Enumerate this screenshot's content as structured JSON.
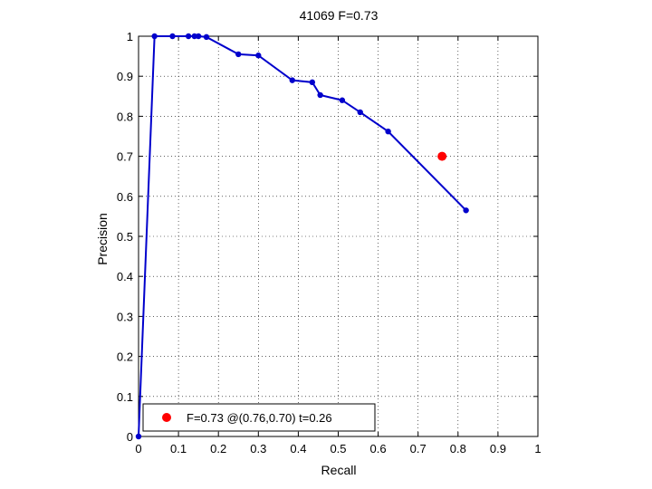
{
  "chart_data": {
    "type": "line",
    "title": "41069 F=0.73",
    "xlabel": "Recall",
    "ylabel": "Precision",
    "xlim": [
      0,
      1
    ],
    "ylim": [
      0,
      1
    ],
    "xticks": [
      "0",
      "0.1",
      "0.2",
      "0.3",
      "0.4",
      "0.5",
      "0.6",
      "0.7",
      "0.8",
      "0.9",
      "1"
    ],
    "yticks": [
      "0",
      "0.1",
      "0.2",
      "0.3",
      "0.4",
      "0.5",
      "0.6",
      "0.7",
      "0.8",
      "0.9",
      "1"
    ],
    "grid": true,
    "series": [
      {
        "color": "#0000cc",
        "x": [
          0,
          0.04,
          0.085,
          0.125,
          0.14,
          0.15,
          0.17,
          0.25,
          0.3,
          0.385,
          0.435,
          0.455,
          0.51,
          0.555,
          0.625,
          0.82
        ],
        "y": [
          0,
          1.0,
          1.0,
          1.0,
          1.0,
          1.0,
          0.998,
          0.955,
          0.952,
          0.89,
          0.885,
          0.853,
          0.84,
          0.81,
          0.762,
          0.565
        ]
      }
    ],
    "highlight": {
      "x": 0.76,
      "y": 0.7,
      "color": "#ff0000"
    },
    "legend": {
      "position": "bottom-left",
      "text": "F=0.73 @(0.76,0.70) t=0.26",
      "color": "#ff0000"
    }
  }
}
